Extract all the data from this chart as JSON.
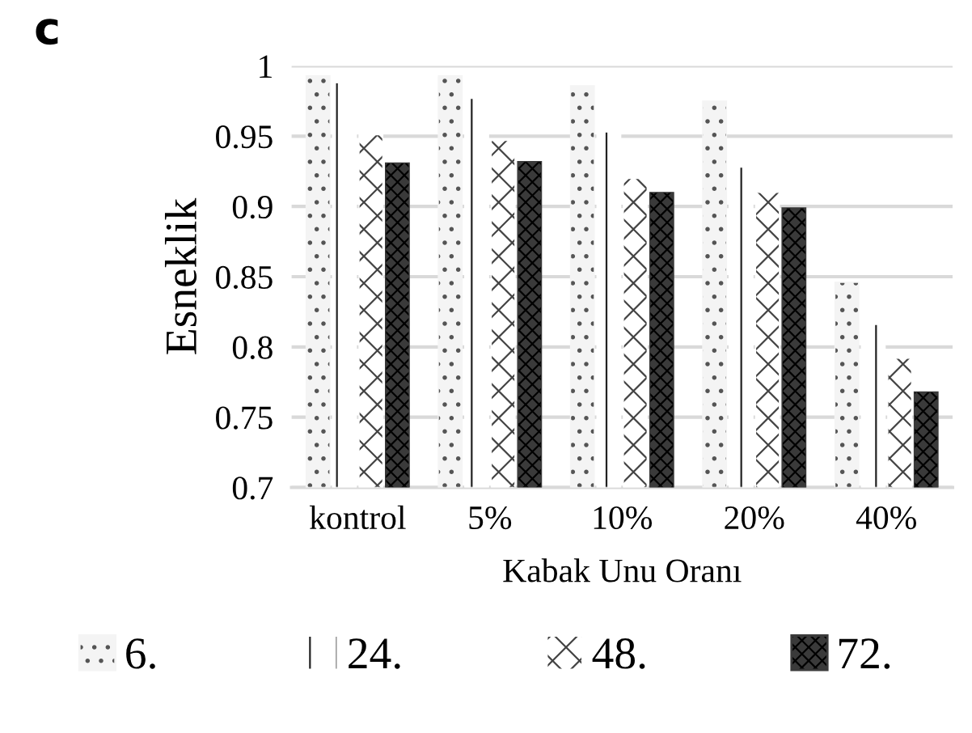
{
  "chart_data": {
    "type": "bar",
    "title": "c",
    "xlabel": "Kabak Unu Oranı",
    "ylabel": "Esneklik",
    "categories": [
      "kontrol",
      "5%",
      "10%",
      "20%",
      "40%"
    ],
    "series": [
      {
        "name": "6.",
        "color": "#f4f4f4",
        "values": [
          0.993,
          0.993,
          0.986,
          0.975,
          0.846
        ]
      },
      {
        "name": "24.",
        "color": "#ffffff",
        "values": [
          0.988,
          0.977,
          0.953,
          0.928,
          0.816
        ]
      },
      {
        "name": "48.",
        "color": "#ffffff",
        "values": [
          0.951,
          0.947,
          0.92,
          0.91,
          0.792
        ]
      },
      {
        "name": "72.",
        "color": "#3a3a3a",
        "values": [
          0.931,
          0.932,
          0.91,
          0.899,
          0.768
        ]
      }
    ],
    "ylim": [
      0.7,
      1
    ],
    "yticks": [
      0.7,
      0.75,
      0.8,
      0.85,
      0.9,
      0.95,
      1
    ],
    "grid": "y",
    "legend": "bottom"
  }
}
